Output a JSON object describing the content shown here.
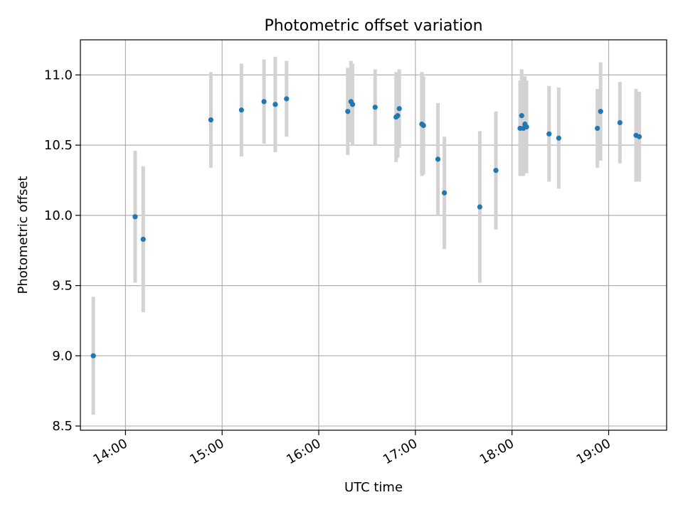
{
  "chart_data": {
    "type": "scatter",
    "title": "Photometric offset variation",
    "xlabel": "UTC time",
    "ylabel": "Photometric offset",
    "x_unit": "UTC time (HH:MM)",
    "xlim": [
      "13:32",
      "19:36"
    ],
    "ylim": [
      8.47,
      11.25
    ],
    "x_ticks": [
      "14:00",
      "15:00",
      "16:00",
      "17:00",
      "18:00",
      "19:00"
    ],
    "y_ticks": [
      8.5,
      9.0,
      9.5,
      10.0,
      10.5,
      11.0
    ],
    "y_tick_labels": [
      "8.5",
      "9.0",
      "9.5",
      "10.0",
      "10.5",
      "11.0"
    ],
    "grid": true,
    "marker_color": "#1f77b4",
    "errorbar_color": "#d3d3d3",
    "points": [
      {
        "x": "13:40",
        "y": 9.0,
        "err": 0.42
      },
      {
        "x": "14:06",
        "y": 9.99,
        "err": 0.47
      },
      {
        "x": "14:11",
        "y": 9.83,
        "err": 0.52
      },
      {
        "x": "14:53",
        "y": 10.68,
        "err": 0.34
      },
      {
        "x": "15:12",
        "y": 10.75,
        "err": 0.33
      },
      {
        "x": "15:26",
        "y": 10.81,
        "err": 0.3
      },
      {
        "x": "15:33",
        "y": 10.79,
        "err": 0.34
      },
      {
        "x": "15:40",
        "y": 10.83,
        "err": 0.27
      },
      {
        "x": "16:18",
        "y": 10.74,
        "err": 0.31
      },
      {
        "x": "16:20",
        "y": 10.81,
        "err": 0.29
      },
      {
        "x": "16:21",
        "y": 10.79,
        "err": 0.29
      },
      {
        "x": "16:35",
        "y": 10.77,
        "err": 0.27
      },
      {
        "x": "16:48",
        "y": 10.7,
        "err": 0.32
      },
      {
        "x": "16:49",
        "y": 10.71,
        "err": 0.3
      },
      {
        "x": "16:50",
        "y": 10.76,
        "err": 0.28
      },
      {
        "x": "17:04",
        "y": 10.65,
        "err": 0.37
      },
      {
        "x": "17:05",
        "y": 10.64,
        "err": 0.35
      },
      {
        "x": "17:14",
        "y": 10.4,
        "err": 0.4
      },
      {
        "x": "17:18",
        "y": 10.16,
        "err": 0.4
      },
      {
        "x": "17:40",
        "y": 10.06,
        "err": 0.54
      },
      {
        "x": "17:50",
        "y": 10.32,
        "err": 0.42
      },
      {
        "x": "18:05",
        "y": 10.62,
        "err": 0.34
      },
      {
        "x": "18:06",
        "y": 10.71,
        "err": 0.33
      },
      {
        "x": "18:07",
        "y": 10.62,
        "err": 0.34
      },
      {
        "x": "18:08",
        "y": 10.65,
        "err": 0.34
      },
      {
        "x": "18:09",
        "y": 10.63,
        "err": 0.33
      },
      {
        "x": "18:23",
        "y": 10.58,
        "err": 0.34
      },
      {
        "x": "18:29",
        "y": 10.55,
        "err": 0.36
      },
      {
        "x": "18:53",
        "y": 10.62,
        "err": 0.28
      },
      {
        "x": "18:55",
        "y": 10.74,
        "err": 0.35
      },
      {
        "x": "19:07",
        "y": 10.66,
        "err": 0.29
      },
      {
        "x": "19:17",
        "y": 10.57,
        "err": 0.33
      },
      {
        "x": "19:19",
        "y": 10.56,
        "err": 0.32
      }
    ]
  }
}
